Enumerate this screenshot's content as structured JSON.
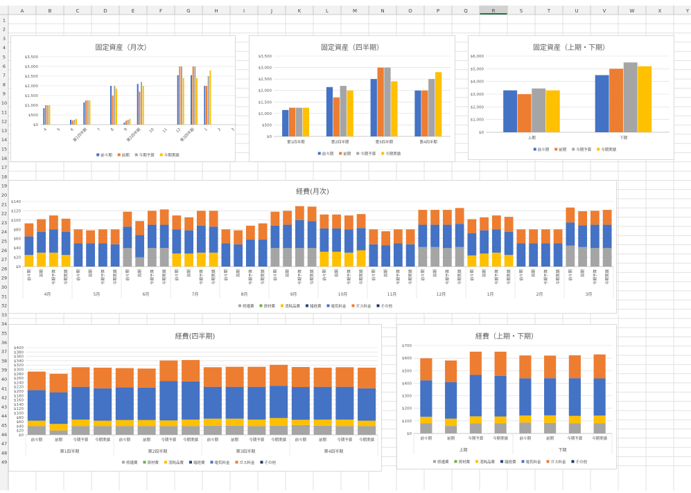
{
  "sheet": {
    "columns": [
      "A",
      "B",
      "C",
      "D",
      "E",
      "F",
      "G",
      "H",
      "I",
      "J",
      "K",
      "L",
      "M",
      "N",
      "O",
      "P",
      "Q",
      "R",
      "S",
      "T",
      "U",
      "V",
      "W",
      "X",
      "Y"
    ],
    "selected_column": "R",
    "rows": [
      1,
      2,
      3,
      4,
      5,
      6,
      7,
      8,
      9,
      10,
      11,
      12,
      13,
      14,
      15,
      16,
      17,
      18,
      19,
      20,
      21,
      22,
      23,
      24,
      25,
      26,
      27,
      28,
      29,
      30,
      31,
      32,
      33,
      34,
      35,
      36,
      37,
      38,
      39,
      40,
      41,
      42,
      43,
      44,
      45,
      46,
      47,
      48,
      49
    ]
  },
  "colors": {
    "blue": "#4472C4",
    "orange": "#ED7D31",
    "gray": "#A5A5A5",
    "yellow": "#FFC000",
    "darkblue": "#264478",
    "green": "#70AD47",
    "navy": "#1F3864"
  },
  "chart_data": [
    {
      "type": "bar",
      "title": "固定資産（月次）",
      "yticks": [
        "$0",
        "$500",
        "$1,000",
        "$1,500",
        "$2,000",
        "$2,500",
        "$3,000",
        "$3,500"
      ],
      "ylim": [
        0,
        3500
      ],
      "categories": [
        "4",
        "5",
        "6",
        "第1四半期",
        "7",
        "8",
        "9",
        "第2四半期",
        "10",
        "11",
        "12",
        "第3四半期",
        "1",
        "2",
        "3"
      ],
      "series": [
        {
          "name": "前々期",
          "color": "blue",
          "values": [
            850,
            0,
            250,
            1150,
            0,
            2000,
            100,
            2100,
            0,
            0,
            2550,
            2550,
            2000,
            0,
            0
          ]
        },
        {
          "name": "前期",
          "color": "orange",
          "values": [
            1000,
            0,
            220,
            1250,
            0,
            1500,
            200,
            1700,
            0,
            0,
            3000,
            3000,
            2000,
            0,
            0
          ]
        },
        {
          "name": "今期予算",
          "color": "gray",
          "values": [
            1000,
            0,
            250,
            1250,
            0,
            2000,
            250,
            2200,
            0,
            0,
            3000,
            3000,
            2500,
            0,
            0
          ]
        },
        {
          "name": "今期実績",
          "color": "yellow",
          "values": [
            1000,
            0,
            300,
            1250,
            0,
            1850,
            300,
            2000,
            0,
            0,
            2400,
            2400,
            2800,
            0,
            0
          ]
        }
      ],
      "legend": "bottom"
    },
    {
      "type": "bar",
      "title": "固定資産（四半期）",
      "yticks": [
        "$0",
        "$500",
        "$1,000",
        "$1,500",
        "$2,000",
        "$2,500",
        "$3,000",
        "$3,500"
      ],
      "ylim": [
        0,
        3500
      ],
      "categories": [
        "第1四半期",
        "第2四半期",
        "第3四半期",
        "第4四半期"
      ],
      "series": [
        {
          "name": "前々期",
          "color": "blue",
          "values": [
            1150,
            2150,
            2500,
            2000
          ]
        },
        {
          "name": "前期",
          "color": "orange",
          "values": [
            1250,
            1700,
            3000,
            2000
          ]
        },
        {
          "name": "今期予算",
          "color": "gray",
          "values": [
            1250,
            2200,
            3000,
            2500
          ]
        },
        {
          "name": "今期実績",
          "color": "yellow",
          "values": [
            1250,
            2000,
            2400,
            2800
          ]
        }
      ],
      "legend": "bottom"
    },
    {
      "type": "bar",
      "title": "固定資産（上期・下期）",
      "yticks": [
        "$0",
        "$1,000",
        "$2,000",
        "$3,000",
        "$4,000",
        "$5,000",
        "$6,000"
      ],
      "ylim": [
        0,
        6000
      ],
      "categories": [
        "上期",
        "下期"
      ],
      "series": [
        {
          "name": "前々期",
          "color": "blue",
          "values": [
            3300,
            4500
          ]
        },
        {
          "name": "前期",
          "color": "orange",
          "values": [
            3000,
            5000
          ]
        },
        {
          "name": "今期予算",
          "color": "gray",
          "values": [
            3450,
            5500
          ]
        },
        {
          "name": "今期実績",
          "color": "yellow",
          "values": [
            3300,
            5200
          ]
        }
      ],
      "legend": "bottom"
    },
    {
      "type": "bar",
      "stacked": true,
      "title": "経費(月次)",
      "yticks": [
        "$0",
        "$20",
        "$40",
        "$60",
        "$80",
        "$100",
        "$120",
        "$140"
      ],
      "ylim": [
        0,
        140
      ],
      "groups": [
        "4月",
        "5月",
        "6月",
        "7月",
        "8月",
        "9月",
        "10月",
        "11月",
        "12月",
        "1月",
        "2月",
        "3月"
      ],
      "sub_categories": [
        "前々期",
        "前期",
        "今期予算",
        "今期実績"
      ],
      "series_names": [
        "修繕費",
        "資材費",
        "消耗品費",
        "諸経費",
        "電気料金",
        "ガス料金",
        "その他"
      ],
      "series_colors": [
        "gray",
        "green",
        "yellow",
        "darkblue",
        "blue",
        "orange",
        "navy"
      ],
      "values": [
        [
          [
            0,
            0,
            25,
            0,
            40,
            28,
            0
          ],
          [
            0,
            0,
            30,
            0,
            45,
            27,
            0
          ],
          [
            0,
            0,
            30,
            0,
            50,
            30,
            0
          ],
          [
            0,
            0,
            25,
            0,
            50,
            28,
            0
          ]
        ],
        [
          [
            0,
            0,
            0,
            0,
            50,
            30,
            0
          ],
          [
            0,
            0,
            0,
            0,
            50,
            28,
            0
          ],
          [
            0,
            0,
            0,
            0,
            50,
            30,
            0
          ],
          [
            0,
            0,
            0,
            0,
            48,
            32,
            0
          ]
        ],
        [
          [
            40,
            0,
            0,
            0,
            46,
            32,
            0
          ],
          [
            20,
            0,
            0,
            0,
            48,
            30,
            0
          ],
          [
            40,
            0,
            0,
            0,
            50,
            30,
            0
          ],
          [
            40,
            0,
            0,
            0,
            50,
            33,
            0
          ]
        ],
        [
          [
            0,
            0,
            28,
            0,
            52,
            30,
            0
          ],
          [
            0,
            0,
            28,
            0,
            50,
            28,
            0
          ],
          [
            0,
            0,
            30,
            0,
            58,
            32,
            0
          ],
          [
            0,
            0,
            30,
            0,
            56,
            34,
            0
          ]
        ],
        [
          [
            0,
            0,
            0,
            0,
            50,
            30,
            0
          ],
          [
            0,
            0,
            0,
            0,
            48,
            30,
            0
          ],
          [
            0,
            0,
            0,
            0,
            58,
            30,
            0
          ],
          [
            0,
            0,
            0,
            0,
            58,
            35,
            0
          ]
        ],
        [
          [
            40,
            0,
            0,
            0,
            48,
            30,
            0
          ],
          [
            40,
            0,
            0,
            0,
            50,
            30,
            0
          ],
          [
            40,
            0,
            0,
            0,
            60,
            30,
            0
          ],
          [
            40,
            0,
            0,
            0,
            58,
            31,
            0
          ]
        ],
        [
          [
            0,
            0,
            32,
            0,
            50,
            30,
            0
          ],
          [
            0,
            0,
            32,
            0,
            50,
            30,
            0
          ],
          [
            0,
            0,
            30,
            0,
            50,
            30,
            0
          ],
          [
            0,
            0,
            35,
            0,
            48,
            30,
            0
          ]
        ],
        [
          [
            0,
            0,
            0,
            0,
            48,
            32,
            0
          ],
          [
            0,
            0,
            0,
            0,
            46,
            30,
            0
          ],
          [
            0,
            0,
            0,
            0,
            50,
            30,
            0
          ],
          [
            0,
            0,
            0,
            0,
            48,
            32,
            0
          ]
        ],
        [
          [
            42,
            0,
            0,
            0,
            48,
            32,
            0
          ],
          [
            42,
            0,
            0,
            0,
            48,
            32,
            0
          ],
          [
            40,
            0,
            0,
            0,
            50,
            32,
            0
          ],
          [
            42,
            0,
            0,
            0,
            50,
            34,
            0
          ]
        ],
        [
          [
            0,
            0,
            24,
            0,
            48,
            30,
            0
          ],
          [
            0,
            0,
            28,
            0,
            50,
            28,
            0
          ],
          [
            0,
            0,
            30,
            0,
            50,
            30,
            0
          ],
          [
            0,
            0,
            25,
            0,
            50,
            32,
            0
          ]
        ],
        [
          [
            0,
            0,
            0,
            0,
            50,
            30,
            0
          ],
          [
            0,
            0,
            0,
            0,
            50,
            30,
            0
          ],
          [
            0,
            0,
            0,
            0,
            50,
            30,
            0
          ],
          [
            0,
            0,
            0,
            0,
            50,
            30,
            0
          ]
        ],
        [
          [
            45,
            0,
            0,
            0,
            50,
            32,
            0
          ],
          [
            42,
            0,
            0,
            0,
            47,
            30,
            0
          ],
          [
            40,
            0,
            0,
            0,
            50,
            30,
            0
          ],
          [
            40,
            0,
            0,
            0,
            50,
            32,
            0
          ]
        ]
      ],
      "legend": "bottom"
    },
    {
      "type": "bar",
      "stacked": true,
      "title": "経費(四半期)",
      "yticks": [
        "$0",
        "$20",
        "$40",
        "$60",
        "$80",
        "$100",
        "$120",
        "$140",
        "$160",
        "$180",
        "$200",
        "$220",
        "$240",
        "$260",
        "$280",
        "$300",
        "$320",
        "$340",
        "$360",
        "$380",
        "$400"
      ],
      "ylim": [
        0,
        400
      ],
      "groups": [
        "第1四半期",
        "第2四半期",
        "第3四半期",
        "第4四半期"
      ],
      "sub_categories": [
        "前々期",
        "前期",
        "今期予算",
        "今期実績"
      ],
      "series_names": [
        "修繕費",
        "資材費",
        "消耗品費",
        "諸経費",
        "電気料金",
        "ガス料金",
        "その他"
      ],
      "series_colors": [
        "gray",
        "green",
        "yellow",
        "darkblue",
        "blue",
        "orange",
        "navy"
      ],
      "values": [
        [
          [
            40,
            0,
            25,
            0,
            140,
            85,
            0
          ],
          [
            20,
            0,
            30,
            0,
            145,
            85,
            0
          ],
          [
            40,
            0,
            30,
            0,
            150,
            90,
            0
          ],
          [
            40,
            0,
            25,
            0,
            148,
            95,
            0
          ]
        ],
        [
          [
            40,
            0,
            28,
            0,
            150,
            88,
            0
          ],
          [
            40,
            0,
            28,
            0,
            148,
            88,
            0
          ],
          [
            40,
            0,
            26,
            0,
            180,
            95,
            0
          ],
          [
            40,
            0,
            30,
            0,
            175,
            98,
            0
          ]
        ],
        [
          [
            42,
            0,
            32,
            0,
            146,
            90,
            0
          ],
          [
            42,
            0,
            32,
            0,
            146,
            92,
            0
          ],
          [
            40,
            0,
            30,
            0,
            150,
            92,
            0
          ],
          [
            42,
            0,
            35,
            0,
            148,
            96,
            0
          ]
        ],
        [
          [
            45,
            0,
            24,
            0,
            150,
            92,
            0
          ],
          [
            42,
            0,
            28,
            0,
            150,
            88,
            0
          ],
          [
            40,
            0,
            30,
            0,
            150,
            90,
            0
          ],
          [
            40,
            0,
            25,
            0,
            148,
            95,
            0
          ]
        ]
      ],
      "legend": "bottom"
    },
    {
      "type": "bar",
      "stacked": true,
      "title": "経費（上期・下期）",
      "yticks": [
        "$0",
        "$100",
        "$200",
        "$300",
        "$400",
        "$500",
        "$600",
        "$700"
      ],
      "ylim": [
        0,
        700
      ],
      "groups": [
        "上期",
        "下期"
      ],
      "sub_categories": [
        "前々期",
        "前期",
        "今期予算",
        "今期実績"
      ],
      "series_names": [
        "修繕費",
        "資材費",
        "消耗品費",
        "諸経費",
        "電気料金",
        "ガス料金",
        "その他"
      ],
      "series_colors": [
        "gray",
        "green",
        "yellow",
        "darkblue",
        "blue",
        "orange",
        "navy"
      ],
      "values": [
        [
          [
            80,
            0,
            53,
            0,
            290,
            175,
            0
          ],
          [
            60,
            0,
            58,
            0,
            290,
            173,
            0
          ],
          [
            80,
            0,
            56,
            0,
            330,
            185,
            0
          ],
          [
            80,
            0,
            55,
            0,
            323,
            193,
            0
          ]
        ],
        [
          [
            87,
            0,
            56,
            0,
            296,
            182,
            0
          ],
          [
            84,
            0,
            60,
            0,
            296,
            180,
            0
          ],
          [
            80,
            0,
            60,
            0,
            300,
            182,
            0
          ],
          [
            82,
            0,
            60,
            0,
            296,
            191,
            0
          ]
        ]
      ],
      "legend": "bottom"
    }
  ]
}
